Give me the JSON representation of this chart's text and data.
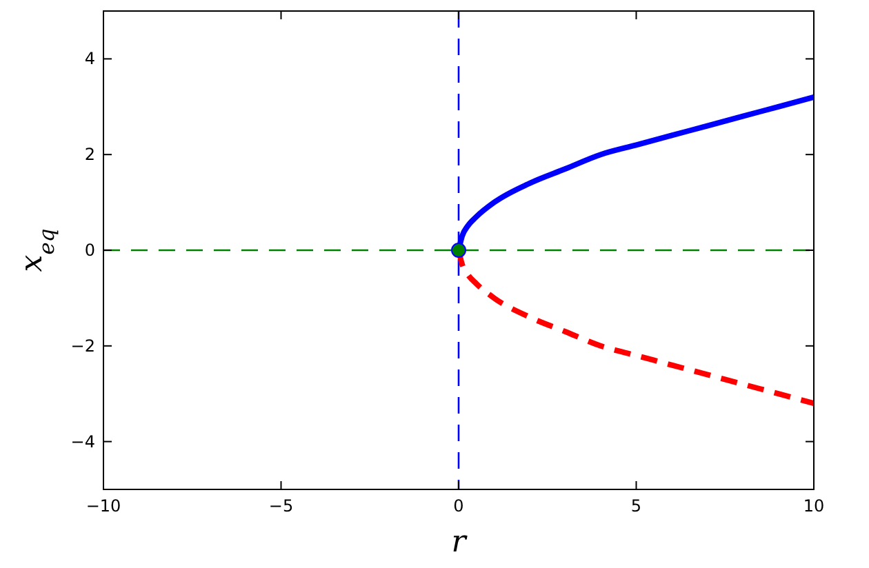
{
  "chart_data": {
    "type": "line",
    "xlabel": "r",
    "ylabel": "x$_{eq}$",
    "xlim": [
      -10,
      10
    ],
    "ylim": [
      -5,
      5
    ],
    "xticks": [
      {
        "value": -10,
        "label": "−10"
      },
      {
        "value": -5,
        "label": "−5"
      },
      0,
      5,
      10
    ],
    "yticks": [
      {
        "value": -4,
        "label": "−4"
      },
      {
        "value": -2,
        "label": "−2"
      },
      0,
      2,
      4
    ],
    "grid": false,
    "ref_lines": [
      {
        "axis": "y",
        "value": 0,
        "color": "#008000",
        "line_style": "dashed"
      },
      {
        "axis": "x",
        "value": 0,
        "color": "#0000ff",
        "line_style": "dashed"
      }
    ],
    "series": [
      {
        "color": "#0000ff",
        "line_style": "solid",
        "x": [
          0,
          0.1,
          0.25,
          0.5,
          1,
          2,
          3,
          4,
          5,
          6,
          7,
          8,
          9,
          10
        ],
        "values": [
          0,
          0.3,
          0.5,
          0.7,
          1,
          1.4,
          1.7,
          2,
          2.2,
          2.4,
          2.6,
          2.8,
          3,
          3.2
        ]
      },
      {
        "color": "#ff0000",
        "line_style": "dashed",
        "x": [
          0,
          0.1,
          0.25,
          0.5,
          1,
          2,
          3,
          4,
          5,
          6,
          7,
          8,
          9,
          10
        ],
        "values": [
          0,
          -0.3,
          -0.5,
          -0.7,
          -1,
          -1.4,
          -1.7,
          -2,
          -2.2,
          -2.4,
          -2.6,
          -2.8,
          -3,
          -3.2
        ]
      },
      {
        "type": "scatter",
        "color": "#008000",
        "marker": "circle",
        "x": [
          0
        ],
        "values": [
          0
        ]
      }
    ]
  }
}
